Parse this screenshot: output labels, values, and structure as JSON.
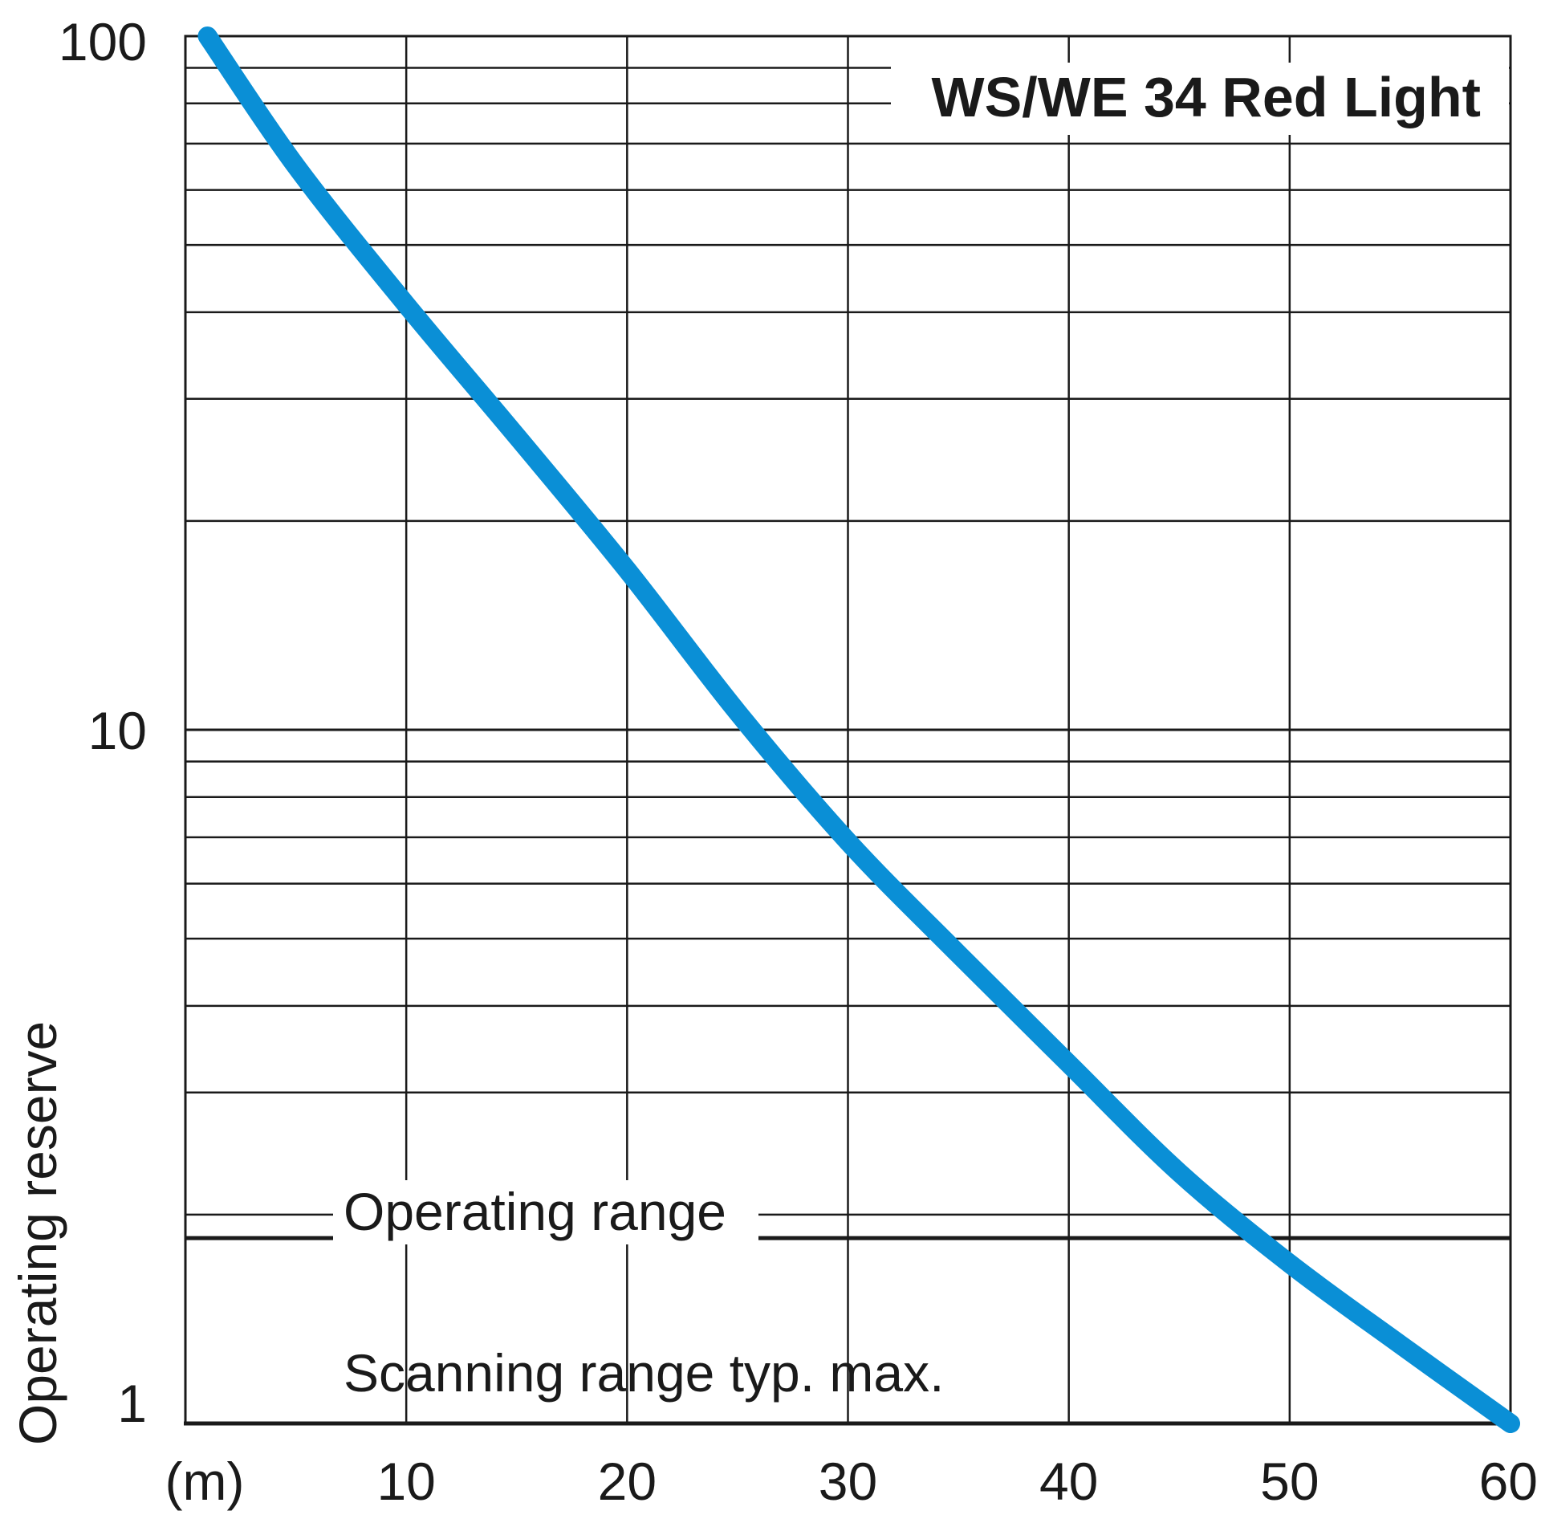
{
  "chart_data": {
    "type": "line",
    "title": "WS/WE 34 Red Light",
    "ylabel": "Operating reserve",
    "xlabel": "",
    "x_unit_label": "(m)",
    "y_scale": "log",
    "xlim": [
      0,
      60
    ],
    "ylim": [
      1,
      100
    ],
    "x_ticks": [
      10,
      20,
      30,
      40,
      50,
      60
    ],
    "x_tick_labels": [
      "10",
      "20",
      "30",
      "40",
      "50",
      "60"
    ],
    "y_ticks": [
      1,
      10,
      100
    ],
    "y_tick_labels": [
      "1",
      "10",
      "100"
    ],
    "grid": true,
    "series": [
      {
        "color": "#0a8fd6",
        "x": [
          1,
          5,
          10,
          15,
          20,
          25,
          30,
          35,
          40,
          45,
          50,
          55,
          60
        ],
        "y": [
          100,
          65,
          41,
          26.5,
          17,
          10.6,
          6.9,
          4.75,
          3.3,
          2.3,
          1.7,
          1.3,
          1.0
        ]
      }
    ],
    "annotations": [
      {
        "text": "Operating range",
        "x": 2,
        "y": 1.85
      },
      {
        "text": "Scanning range typ. max.",
        "x": 6.5,
        "y": 1.13
      }
    ],
    "reference_lines": [
      {
        "axis": "y",
        "value": 1.85
      }
    ],
    "colors": {
      "grid": "#1a1a1a",
      "line": "#0a8fd6",
      "text": "#1a1a1a"
    }
  }
}
